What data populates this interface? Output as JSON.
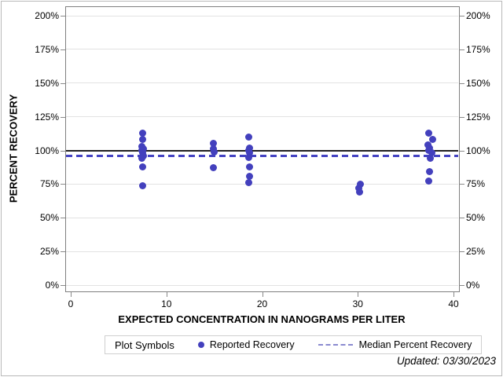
{
  "chart": {
    "y_axis_title": "PERCENT RECOVERY",
    "x_axis_title": "EXPECTED CONCENTRATION IN NANOGRAMS PER LITER",
    "footnote": "Updated: 03/30/2023",
    "legend": {
      "title": "Plot Symbols",
      "items": [
        {
          "label": "Reported Recovery",
          "swatch": "dot-icon"
        },
        {
          "label": "Median Percent Recovery",
          "swatch": "dashed-line-icon"
        }
      ]
    }
  },
  "colors": {
    "marker": "#4340bd",
    "median_line": "#4342c2",
    "reference_line": "#1f1f1f",
    "gridline": "#e2e2e2",
    "axis_frame": "#7f7f7f",
    "legend_dash": "#8a8ad0"
  },
  "chart_data": {
    "type": "scatter",
    "title": "",
    "xlabel": "EXPECTED CONCENTRATION IN NANOGRAMS PER LITER",
    "ylabel": "PERCENT RECOVERY",
    "xlim": [
      -0.575,
      40.49
    ],
    "ylim": [
      -4.08,
      207.0
    ],
    "x_ticks": [
      0,
      10,
      20,
      30,
      40
    ],
    "y_ticks": [
      0,
      25,
      50,
      75,
      100,
      125,
      150,
      175,
      200
    ],
    "y_tick_labels": [
      "0%",
      "25%",
      "50%",
      "75%",
      "100%",
      "125%",
      "150%",
      "175%",
      "200%"
    ],
    "grid": "horizontal",
    "legend_position": "bottom",
    "series": [
      {
        "name": "Reported Recovery",
        "type": "scatter",
        "color": "#4340bd",
        "points": [
          [
            7.5,
            113
          ],
          [
            7.5,
            108
          ],
          [
            7.4,
            103
          ],
          [
            7.6,
            101
          ],
          [
            7.4,
            100
          ],
          [
            7.5,
            98
          ],
          [
            7.6,
            96
          ],
          [
            7.4,
            94
          ],
          [
            7.5,
            88
          ],
          [
            7.5,
            74
          ],
          [
            14.9,
            105
          ],
          [
            14.9,
            101
          ],
          [
            15.0,
            99
          ],
          [
            14.9,
            87
          ],
          [
            18.6,
            110
          ],
          [
            18.7,
            102
          ],
          [
            18.6,
            100
          ],
          [
            18.7,
            98
          ],
          [
            18.6,
            95
          ],
          [
            18.7,
            88
          ],
          [
            18.7,
            81
          ],
          [
            18.6,
            76
          ],
          [
            30.3,
            75
          ],
          [
            30.1,
            72
          ],
          [
            30.2,
            69
          ],
          [
            37.4,
            113
          ],
          [
            37.8,
            108
          ],
          [
            37.3,
            104
          ],
          [
            37.5,
            102
          ],
          [
            37.4,
            100
          ],
          [
            37.7,
            98
          ],
          [
            37.6,
            94
          ],
          [
            37.5,
            84
          ],
          [
            37.4,
            77
          ]
        ]
      },
      {
        "name": "Median Percent Recovery",
        "type": "hline",
        "style": "dashed",
        "color": "#4342c2",
        "y": 96
      },
      {
        "name": "100% Reference",
        "type": "hline",
        "style": "solid",
        "color": "#1f1f1f",
        "y": 100
      }
    ]
  }
}
